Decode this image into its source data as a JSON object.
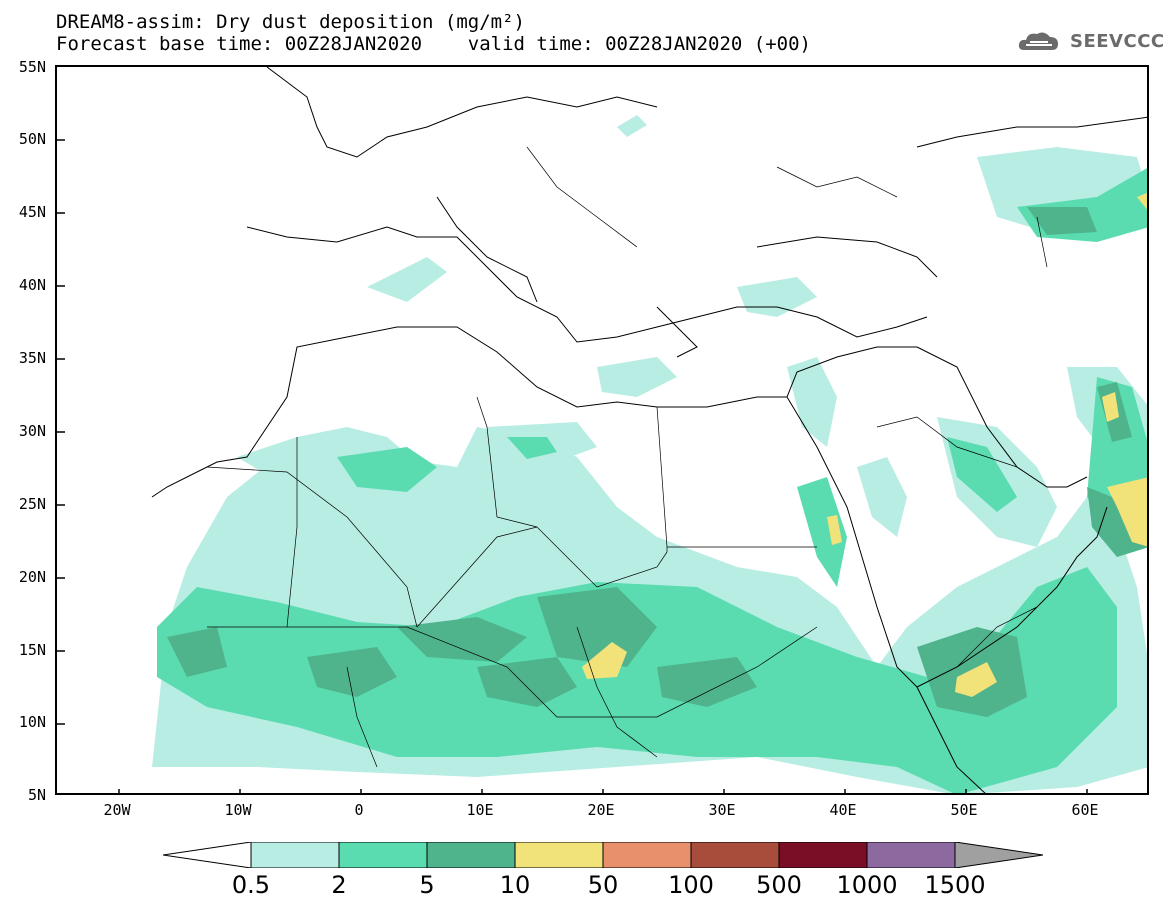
{
  "title": {
    "line1": "DREAM8-assim: Dry dust deposition (mg/m²)",
    "line2": "Forecast base time: 00Z28JAN2020    valid time: 00Z28JAN2020 (+00)"
  },
  "logo": {
    "text": "SEEVCCC",
    "icon": "cloud-icon"
  },
  "axes": {
    "lat_labels": [
      "55N",
      "50N",
      "45N",
      "40N",
      "35N",
      "30N",
      "25N",
      "20N",
      "15N",
      "10N",
      "5N"
    ],
    "lon_labels": [
      "20W",
      "10W",
      "0",
      "10E",
      "20E",
      "30E",
      "40E",
      "50E",
      "60E"
    ]
  },
  "colorbar": {
    "labels": [
      "0.5",
      "2",
      "5",
      "10",
      "50",
      "100",
      "500",
      "1000",
      "1500"
    ],
    "colors": [
      "#ffffff",
      "#b8ede4",
      "#5adcb0",
      "#4fb48c",
      "#f2e27a",
      "#e8906c",
      "#a84c3c",
      "#7a0e26",
      "#8c6aa0",
      "#a0a0a0"
    ]
  }
}
